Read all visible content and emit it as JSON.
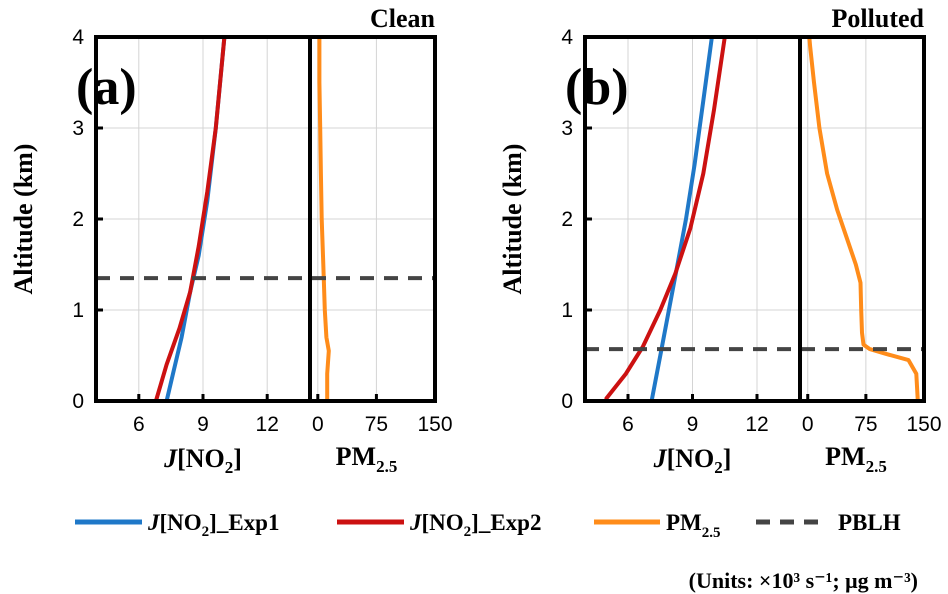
{
  "chart_data": [
    {
      "type": "line",
      "panel_label": "(a)",
      "title": "Clean",
      "ylabel": "Altitude (km)",
      "ylim": [
        0,
        4
      ],
      "yticks": [
        0,
        1,
        2,
        3,
        4
      ],
      "pblh_km": 1.35,
      "left_axis": {
        "xlabel": "J[NO2]",
        "xlim": [
          4,
          14
        ],
        "xticks": [
          6,
          9,
          12
        ],
        "series": [
          {
            "name": "J[NO2]_Exp1",
            "color": "#1f78c8",
            "points": [
              [
                7.3,
                0.0
              ],
              [
                7.6,
                0.3
              ],
              [
                8.0,
                0.7
              ],
              [
                8.4,
                1.2
              ],
              [
                8.8,
                1.6
              ],
              [
                9.2,
                2.2
              ],
              [
                9.6,
                3.0
              ],
              [
                10.0,
                4.0
              ]
            ]
          },
          {
            "name": "J[NO2]_Exp2",
            "color": "#cc1111",
            "points": [
              [
                6.8,
                0.0
              ],
              [
                7.3,
                0.4
              ],
              [
                7.9,
                0.8
              ],
              [
                8.4,
                1.2
              ],
              [
                8.8,
                1.7
              ],
              [
                9.2,
                2.3
              ],
              [
                9.6,
                3.0
              ],
              [
                10.0,
                4.0
              ]
            ]
          }
        ]
      },
      "right_axis": {
        "xlabel": "PM2.5",
        "xlim": [
          -10,
          150
        ],
        "xticks": [
          0,
          75,
          150
        ],
        "series": [
          {
            "name": "PM2.5",
            "color": "#ff8c1a",
            "points": [
              [
                12,
                0.0
              ],
              [
                12,
                0.3
              ],
              [
                14,
                0.55
              ],
              [
                11,
                0.7
              ],
              [
                9,
                1.0
              ],
              [
                7,
                1.5
              ],
              [
                5,
                2.0
              ],
              [
                4,
                2.5
              ],
              [
                3,
                3.0
              ],
              [
                2,
                3.5
              ],
              [
                2,
                4.0
              ]
            ]
          }
        ]
      }
    },
    {
      "type": "line",
      "panel_label": "(b)",
      "title": "Polluted",
      "ylabel": "Altitude (km)",
      "ylim": [
        0,
        4
      ],
      "yticks": [
        0,
        1,
        2,
        3,
        4
      ],
      "pblh_km": 0.57,
      "left_axis": {
        "xlabel": "J[NO2]",
        "xlim": [
          4,
          14
        ],
        "xticks": [
          6,
          9,
          12
        ],
        "series": [
          {
            "name": "J[NO2]_Exp1",
            "color": "#1f78c8",
            "points": [
              [
                7.1,
                0.0
              ],
              [
                7.5,
                0.5
              ],
              [
                7.9,
                1.0
              ],
              [
                8.3,
                1.5
              ],
              [
                8.7,
                2.0
              ],
              [
                9.1,
                2.6
              ],
              [
                9.5,
                3.3
              ],
              [
                9.9,
                4.0
              ]
            ]
          },
          {
            "name": "J[NO2]_Exp2",
            "color": "#cc1111",
            "points": [
              [
                5.0,
                0.03
              ],
              [
                5.9,
                0.3
              ],
              [
                6.7,
                0.6
              ],
              [
                7.5,
                1.0
              ],
              [
                8.2,
                1.4
              ],
              [
                8.9,
                1.9
              ],
              [
                9.5,
                2.5
              ],
              [
                10.0,
                3.2
              ],
              [
                10.5,
                4.0
              ]
            ]
          }
        ]
      },
      "right_axis": {
        "xlabel": "PM2.5",
        "xlim": [
          -10,
          150
        ],
        "xticks": [
          0,
          75,
          150
        ],
        "series": [
          {
            "name": "PM2.5",
            "color": "#ff8c1a",
            "points": [
              [
                142,
                0.0
              ],
              [
                140,
                0.3
              ],
              [
                130,
                0.45
              ],
              [
                100,
                0.52
              ],
              [
                80,
                0.57
              ],
              [
                72,
                0.62
              ],
              [
                70,
                0.75
              ],
              [
                69,
                1.0
              ],
              [
                68,
                1.3
              ],
              [
                62,
                1.5
              ],
              [
                50,
                1.8
              ],
              [
                38,
                2.1
              ],
              [
                25,
                2.5
              ],
              [
                15,
                3.0
              ],
              [
                8,
                3.5
              ],
              [
                3,
                3.9
              ],
              [
                2,
                4.0
              ]
            ]
          }
        ]
      }
    }
  ],
  "legend": {
    "placement": "bottom",
    "items": [
      {
        "label": "J[NO2]_Exp1",
        "color": "#1f78c8",
        "style": "solid"
      },
      {
        "label": "J[NO2]_Exp2",
        "color": "#cc1111",
        "style": "solid"
      },
      {
        "label": "PM2.5",
        "color": "#ff8c1a",
        "style": "solid"
      },
      {
        "label": "PBLH",
        "color": "#444444",
        "style": "dashed"
      }
    ]
  },
  "units_note": "(Units: ×10³ s⁻¹; μg m⁻³)"
}
